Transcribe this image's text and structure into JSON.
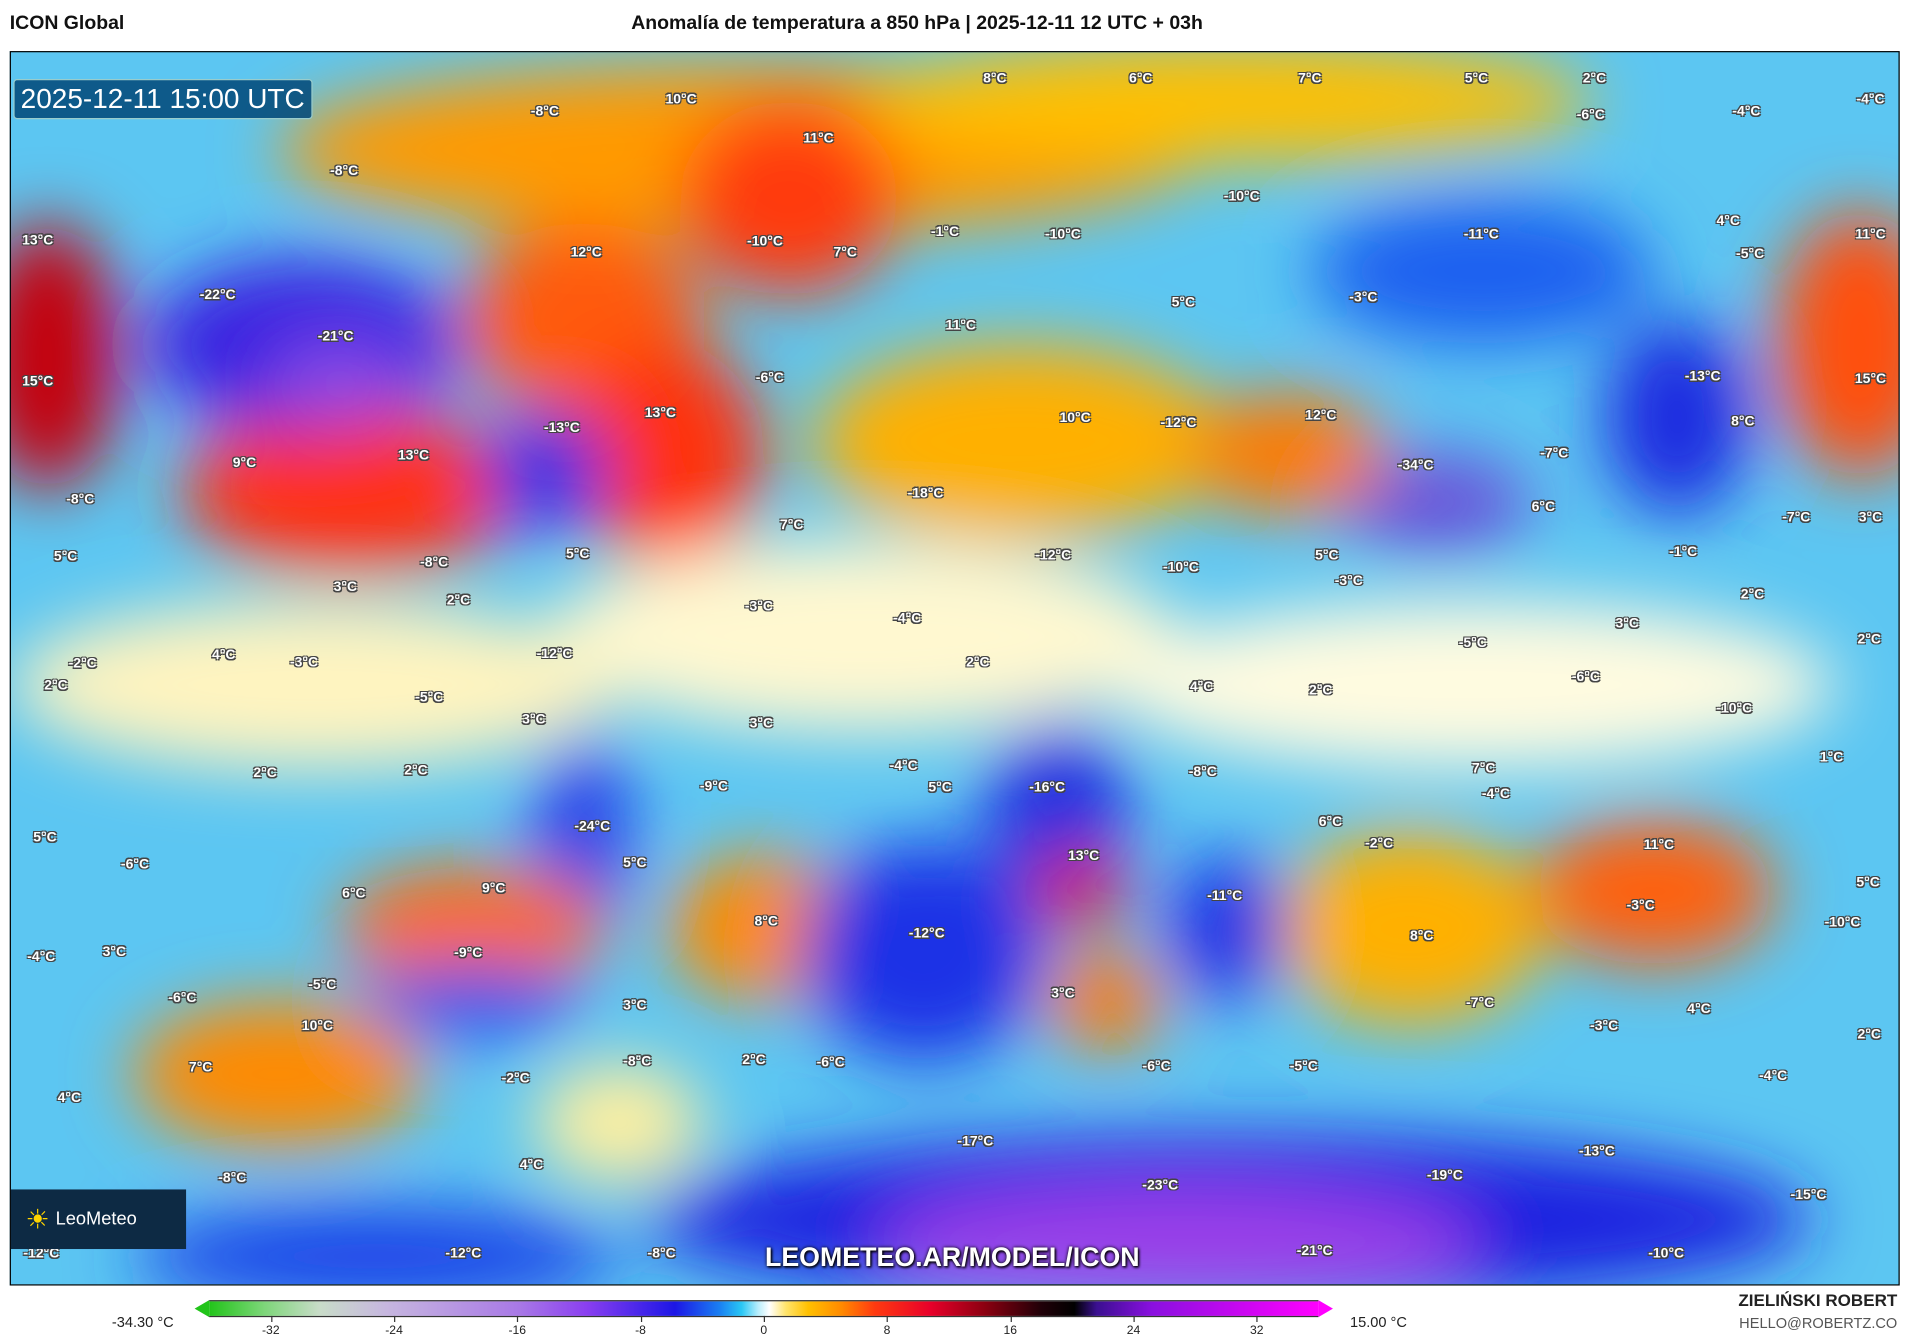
{
  "header": {
    "model": "ICON Global",
    "title": "Anomalía de temperatura a 850 hPa | 2025-12-11 12 UTC + 03h"
  },
  "map": {
    "valid_time": "2025-12-11 15:00 UTC",
    "watermark_url": "LEOMETEO.AR/MODEL/ICON",
    "logo_text": "LeoMeteo",
    "labels": [
      "10°C",
      "8°C",
      "6°C",
      "7°C",
      "5°C",
      "2°C",
      "-4°C",
      "-8°C",
      "-6°C",
      "-4°C",
      "11°C",
      "-8°C",
      "-10°C",
      "-1°C",
      "-10°C",
      "-11°C",
      "4°C",
      "11°C",
      "13°C",
      "12°C",
      "-10°C",
      "7°C",
      "-5°C",
      "-22°C",
      "-3°C",
      "5°C",
      "-21°C",
      "11°C",
      "15°C",
      "-6°C",
      "-13°C",
      "15°C",
      "13°C",
      "12°C",
      "-13°C",
      "10°C",
      "-12°C",
      "8°C",
      "13°C",
      "9°C",
      "-7°C",
      "-34°C",
      "-8°C",
      "-18°C",
      "6°C",
      "-7°C",
      "3°C",
      "7°C",
      "5°C",
      "-8°C",
      "5°C",
      "-12°C",
      "-10°C",
      "5°C",
      "-3°C",
      "-1°C",
      "3°C",
      "2°C",
      "-3°C",
      "2°C",
      "-4°C",
      "3°C",
      "2°C",
      "-5°C",
      "-2°C",
      "4°C",
      "-3°C",
      "-12°C",
      "2°C",
      "-6°C",
      "2°C",
      "-5°C",
      "4°C",
      "2°C",
      "-10°C",
      "3°C",
      "3°C",
      "1°C",
      "2°C",
      "2°C",
      "-4°C",
      "-8°C",
      "7°C",
      "-9°C",
      "5°C",
      "-16°C",
      "-4°C",
      "5°C",
      "6°C",
      "-24°C",
      "-2°C",
      "11°C",
      "-6°C",
      "5°C",
      "13°C",
      "9°C",
      "6°C",
      "-11°C",
      "5°C",
      "-3°C",
      "8°C",
      "-12°C",
      "-10°C",
      "-4°C",
      "3°C",
      "-9°C",
      "8°C",
      "-5°C",
      "-6°C",
      "3°C",
      "3°C",
      "-7°C",
      "4°C",
      "-3°C",
      "10°C",
      "2°C",
      "7°C",
      "-2°C",
      "-8°C",
      "2°C",
      "-6°C",
      "-6°C",
      "-5°C",
      "-4°C",
      "4°C",
      "-17°C",
      "-13°C",
      "4°C",
      "-8°C",
      "-23°C",
      "-19°C",
      "-15°C",
      "-12°C",
      "-12°C",
      "-8°C",
      "-21°C",
      "-10°C"
    ]
  },
  "colorbar": {
    "min_label": "-34.30 °C",
    "max_label": "15.00 °C",
    "ticks": [
      "-32",
      "-24",
      "-16",
      "-8",
      "0",
      "8",
      "16",
      "24",
      "32"
    ],
    "range": [
      -36,
      36
    ]
  },
  "credits": {
    "author": "ZIELIŃSKI ROBERT",
    "email": "HELLO@ROBERTZ.CO"
  }
}
